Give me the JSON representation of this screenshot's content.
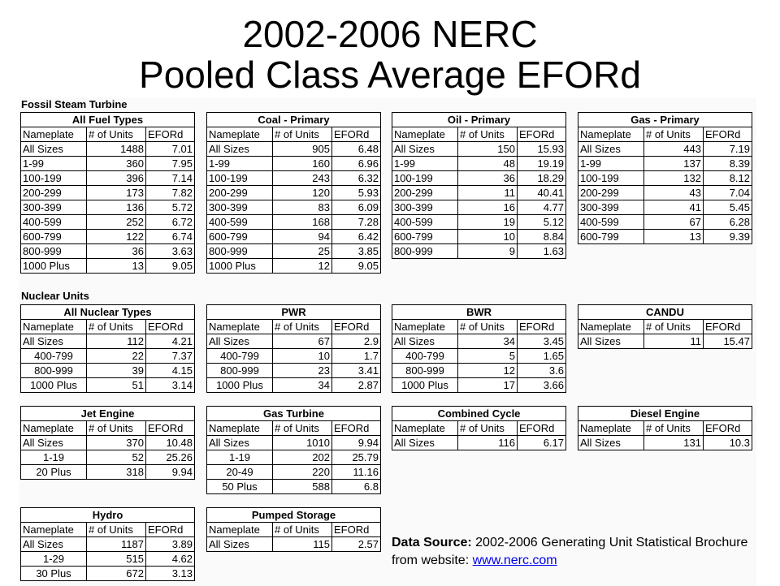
{
  "title": {
    "line1": "2002-2006 NERC",
    "line2": "Pooled Class Average EFORd"
  },
  "columns": [
    "Nameplate",
    "# of Units",
    "EFORd"
  ],
  "sections": {
    "fossil": "Fossil Steam Turbine",
    "nuclear": "Nuclear Units"
  },
  "tables": [
    {
      "title": "All Fuel Types",
      "rows": [
        [
          "All Sizes",
          "1488",
          "7.01"
        ],
        [
          "1-99",
          "360",
          "7.95"
        ],
        [
          "100-199",
          "396",
          "7.14"
        ],
        [
          "200-299",
          "173",
          "7.82"
        ],
        [
          "300-399",
          "136",
          "5.72"
        ],
        [
          "400-599",
          "252",
          "6.72"
        ],
        [
          "600-799",
          "122",
          "6.74"
        ],
        [
          "800-999",
          "36",
          "3.63"
        ],
        [
          "1000 Plus",
          "13",
          "9.05"
        ]
      ]
    },
    {
      "title": "Coal - Primary",
      "rows": [
        [
          "All Sizes",
          "905",
          "6.48"
        ],
        [
          "1-99",
          "160",
          "6.96"
        ],
        [
          "100-199",
          "243",
          "6.32"
        ],
        [
          "200-299",
          "120",
          "5.93"
        ],
        [
          "300-399",
          "83",
          "6.09"
        ],
        [
          "400-599",
          "168",
          "7.28"
        ],
        [
          "600-799",
          "94",
          "6.42"
        ],
        [
          "800-999",
          "25",
          "3.85"
        ],
        [
          "1000 Plus",
          "12",
          "9.05"
        ]
      ]
    },
    {
      "title": "Oil - Primary",
      "rows": [
        [
          "All Sizes",
          "150",
          "15.93"
        ],
        [
          "1-99",
          "48",
          "19.19"
        ],
        [
          "100-199",
          "36",
          "18.29"
        ],
        [
          "200-299",
          "11",
          "40.41"
        ],
        [
          "300-399",
          "16",
          "4.77"
        ],
        [
          "400-599",
          "19",
          "5.12"
        ],
        [
          "600-799",
          "10",
          "8.84"
        ],
        [
          "800-999",
          "9",
          "1.63"
        ]
      ]
    },
    {
      "title": "Gas - Primary",
      "rows": [
        [
          "All Sizes",
          "443",
          "7.19"
        ],
        [
          "1-99",
          "137",
          "8.39"
        ],
        [
          "100-199",
          "132",
          "8.12"
        ],
        [
          "200-299",
          "43",
          "7.04"
        ],
        [
          "300-399",
          "41",
          "5.45"
        ],
        [
          "400-599",
          "67",
          "6.28"
        ],
        [
          "600-799",
          "13",
          "9.39"
        ]
      ]
    },
    {
      "title": "All Nuclear Types",
      "rows": [
        [
          "All Sizes",
          "112",
          "4.21"
        ],
        [
          "400-799",
          "22",
          "7.37"
        ],
        [
          "800-999",
          "39",
          "4.15"
        ],
        [
          "1000 Plus",
          "51",
          "3.14"
        ]
      ]
    },
    {
      "title": "PWR",
      "rows": [
        [
          "All Sizes",
          "67",
          "2.9"
        ],
        [
          "400-799",
          "10",
          "1.7"
        ],
        [
          "800-999",
          "23",
          "3.41"
        ],
        [
          "1000 Plus",
          "34",
          "2.87"
        ]
      ]
    },
    {
      "title": "BWR",
      "rows": [
        [
          "All Sizes",
          "34",
          "3.45"
        ],
        [
          "400-799",
          "5",
          "1.65"
        ],
        [
          "800-999",
          "12",
          "3.6"
        ],
        [
          "1000 Plus",
          "17",
          "3.66"
        ]
      ]
    },
    {
      "title": "CANDU",
      "rows": [
        [
          "All Sizes",
          "11",
          "15.47"
        ]
      ]
    },
    {
      "title": "Jet Engine",
      "rows": [
        [
          "All Sizes",
          "370",
          "10.48"
        ],
        [
          "1-19",
          "52",
          "25.26"
        ],
        [
          "20 Plus",
          "318",
          "9.94"
        ]
      ]
    },
    {
      "title": "Gas Turbine",
      "rows": [
        [
          "All Sizes",
          "1010",
          "9.94"
        ],
        [
          "1-19",
          "202",
          "25.79"
        ],
        [
          "20-49",
          "220",
          "11.16"
        ],
        [
          "50 Plus",
          "588",
          "6.8"
        ]
      ]
    },
    {
      "title": "Combined Cycle",
      "rows": [
        [
          "All Sizes",
          "116",
          "6.17"
        ]
      ]
    },
    {
      "title": "Diesel Engine",
      "rows": [
        [
          "All Sizes",
          "131",
          "10.3"
        ]
      ]
    },
    {
      "title": "Hydro",
      "rows": [
        [
          "All Sizes",
          "1187",
          "3.89"
        ],
        [
          "1-29",
          "515",
          "4.62"
        ],
        [
          "30 Plus",
          "672",
          "3.13"
        ]
      ]
    },
    {
      "title": "Pumped Storage",
      "rows": [
        [
          "All Sizes",
          "115",
          "2.57"
        ]
      ]
    }
  ],
  "source": {
    "label": "Data Source:",
    "text": " 2002-2006 Generating Unit Statistical Brochure from website: ",
    "link": "www.nerc.com"
  }
}
